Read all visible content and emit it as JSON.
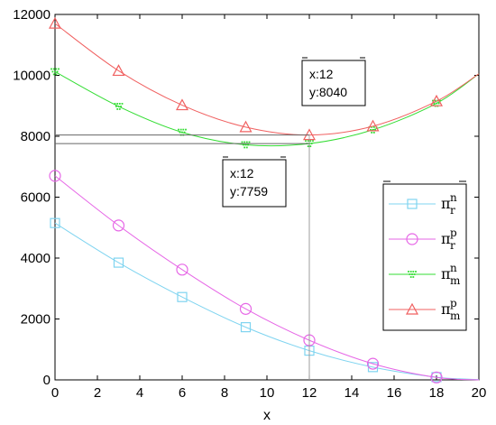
{
  "chart_data": {
    "type": "line",
    "xlabel": "x",
    "ylabel": "",
    "title": "",
    "xlim": [
      0,
      20
    ],
    "ylim": [
      0,
      12000
    ],
    "xticks": [
      0,
      2,
      4,
      6,
      8,
      10,
      12,
      14,
      16,
      18,
      20
    ],
    "yticks": [
      0,
      2000,
      4000,
      6000,
      8000,
      10000,
      12000
    ],
    "grid": false,
    "legend_position": "right",
    "series": [
      {
        "name": "π_r^n",
        "legend_symbol": "π",
        "legend_sup": "n",
        "legend_sub": "r",
        "color": "#7fd4f0",
        "marker": "square",
        "x": [
          0,
          3,
          6,
          9,
          12,
          15,
          18
        ],
        "y": [
          5150,
          3850,
          2720,
          1730,
          960,
          420,
          90
        ],
        "curve_end": 10
      },
      {
        "name": "π_r^p",
        "legend_symbol": "π",
        "legend_sup": "p",
        "legend_sub": "r",
        "color": "#e666e6",
        "marker": "circle",
        "x": [
          0,
          3,
          6,
          9,
          12,
          15,
          18
        ],
        "y": [
          6700,
          5070,
          3620,
          2330,
          1300,
          530,
          80
        ],
        "curve_end": 0
      },
      {
        "name": "π_m^n",
        "legend_symbol": "π",
        "legend_sup": "n",
        "legend_sub": "m",
        "color": "#33dd33",
        "marker": "triangle-down-dotted",
        "x": [
          0,
          3,
          6,
          9,
          12,
          15,
          18
        ],
        "y": [
          10120,
          8980,
          8130,
          7720,
          7759,
          8210,
          9080
        ],
        "curve_end": 10050
      },
      {
        "name": "π_m^p",
        "legend_symbol": "π",
        "legend_sup": "p",
        "legend_sub": "m",
        "color": "#f06060",
        "marker": "triangle-up",
        "x": [
          0,
          3,
          6,
          9,
          12,
          15,
          18
        ],
        "y": [
          11700,
          10150,
          9020,
          8300,
          8040,
          8330,
          9150
        ],
        "curve_end": 10050
      }
    ],
    "datatips": [
      {
        "x": 12,
        "y": 7759,
        "line1": "x:12",
        "line2": "y:7759"
      },
      {
        "x": 12,
        "y": 8040,
        "line1": "x:12",
        "line2": "y:8040"
      }
    ]
  }
}
